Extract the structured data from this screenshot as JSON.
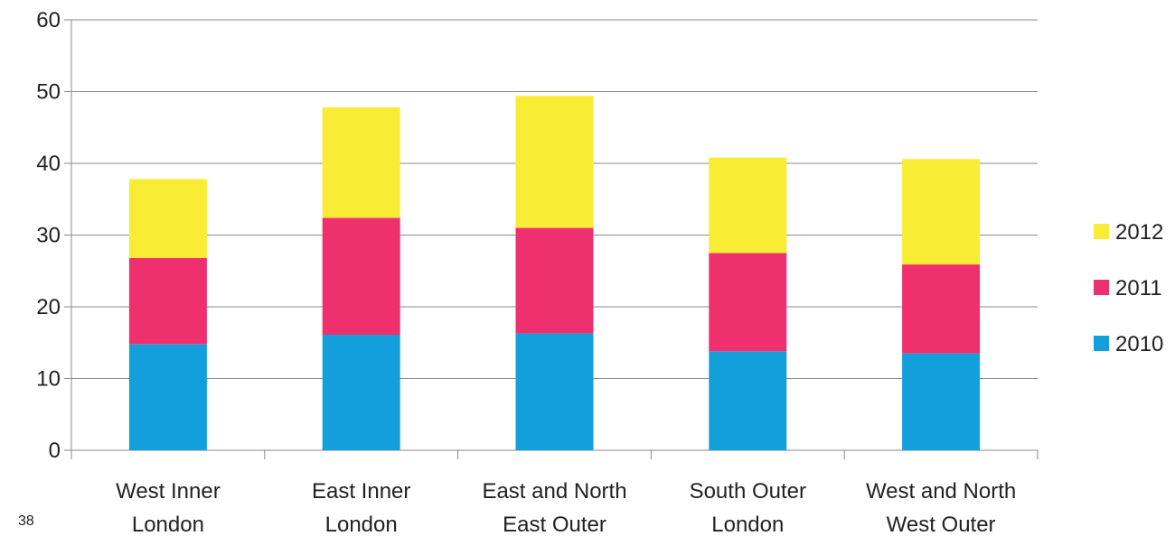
{
  "page_number": "38",
  "chart_data": {
    "type": "bar",
    "stacked": true,
    "categories": [
      [
        "West Inner",
        "London"
      ],
      [
        "East Inner",
        "London"
      ],
      [
        "East and North",
        "East Outer"
      ],
      [
        "South Outer",
        "London"
      ],
      [
        "West and North",
        "West Outer"
      ]
    ],
    "series": [
      {
        "name": "2010",
        "color": "#139fdb",
        "values": [
          14.8,
          16.1,
          16.3,
          13.8,
          13.5
        ]
      },
      {
        "name": "2011",
        "color": "#ee316e",
        "values": [
          12.0,
          16.3,
          14.7,
          13.7,
          12.4
        ]
      },
      {
        "name": "2012",
        "color": "#f8ec35",
        "values": [
          11.0,
          15.4,
          18.4,
          13.3,
          14.7
        ]
      }
    ],
    "ylim": [
      0,
      60
    ],
    "yticks": [
      0,
      10,
      20,
      30,
      40,
      50,
      60
    ],
    "grid": true,
    "legend_position": "right",
    "legend_order": [
      "2012",
      "2011",
      "2010"
    ],
    "title": "",
    "xlabel": "",
    "ylabel": ""
  }
}
